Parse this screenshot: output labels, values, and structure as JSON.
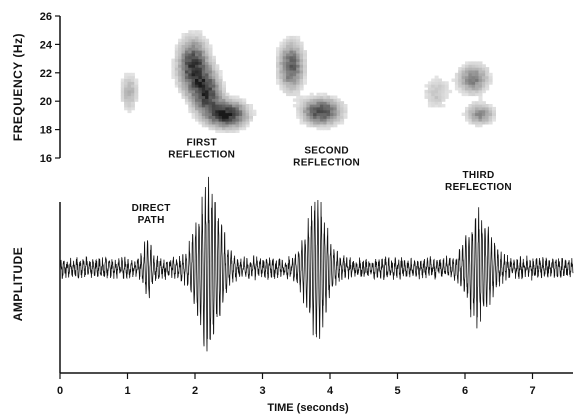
{
  "chart_data": [
    {
      "type": "heatmap",
      "ylabel": "FREQUENCY (Hz)",
      "y_ticks": [
        16,
        18,
        20,
        22,
        24,
        26
      ],
      "ylim": [
        16,
        26
      ],
      "xlim": [
        0,
        7.6
      ],
      "blobs": [
        {
          "name": "direct",
          "t": 1.0,
          "f": 20.6,
          "st": 0.12,
          "sf": 1.3,
          "w": 0.35
        },
        {
          "name": "first-a",
          "t": 1.95,
          "f": 22.4,
          "st": 0.22,
          "sf": 1.8,
          "w": 0.85
        },
        {
          "name": "first-b",
          "t": 2.45,
          "f": 19.0,
          "st": 0.28,
          "sf": 0.9,
          "w": 0.95
        },
        {
          "name": "first-c",
          "t": 2.15,
          "f": 20.5,
          "st": 0.2,
          "sf": 1.4,
          "w": 0.75
        },
        {
          "name": "second-a",
          "t": 3.4,
          "f": 22.4,
          "st": 0.18,
          "sf": 1.6,
          "w": 0.7
        },
        {
          "name": "second-b",
          "t": 3.85,
          "f": 19.2,
          "st": 0.28,
          "sf": 0.9,
          "w": 0.8
        },
        {
          "name": "third-a",
          "t": 5.55,
          "f": 20.5,
          "st": 0.2,
          "sf": 1.2,
          "w": 0.25
        },
        {
          "name": "third-b",
          "t": 6.1,
          "f": 21.5,
          "st": 0.22,
          "sf": 1.0,
          "w": 0.55
        },
        {
          "name": "third-c",
          "t": 6.2,
          "f": 19.0,
          "st": 0.2,
          "sf": 0.7,
          "w": 0.5
        }
      ]
    },
    {
      "type": "line",
      "xlabel": "TIME (seconds)",
      "ylabel": "AMPLITUDE",
      "x_ticks": [
        0,
        1,
        2,
        3,
        4,
        5,
        6,
        7
      ],
      "xlim": [
        0,
        7.6
      ],
      "ylim": [
        -1,
        1
      ],
      "packets": [
        {
          "center": 1.3,
          "width": 0.08,
          "amp": 0.3
        },
        {
          "center": 2.2,
          "width": 0.22,
          "amp": 1.0
        },
        {
          "center": 3.8,
          "width": 0.2,
          "amp": 0.8
        },
        {
          "center": 6.2,
          "width": 0.22,
          "amp": 0.65
        }
      ],
      "noise_level": 0.1,
      "annotations": [
        {
          "lines": [
            "DIRECT",
            "PATH"
          ],
          "t": 1.35,
          "level": 0.55
        },
        {
          "lines": [
            "FIRST",
            "REFLECTION"
          ],
          "t": 2.1,
          "level": 1.35
        },
        {
          "lines": [
            "SECOND",
            "REFLECTION"
          ],
          "t": 3.95,
          "level": 1.25
        },
        {
          "lines": [
            "THIRD",
            "REFLECTION"
          ],
          "t": 6.2,
          "level": 0.95
        }
      ]
    }
  ]
}
